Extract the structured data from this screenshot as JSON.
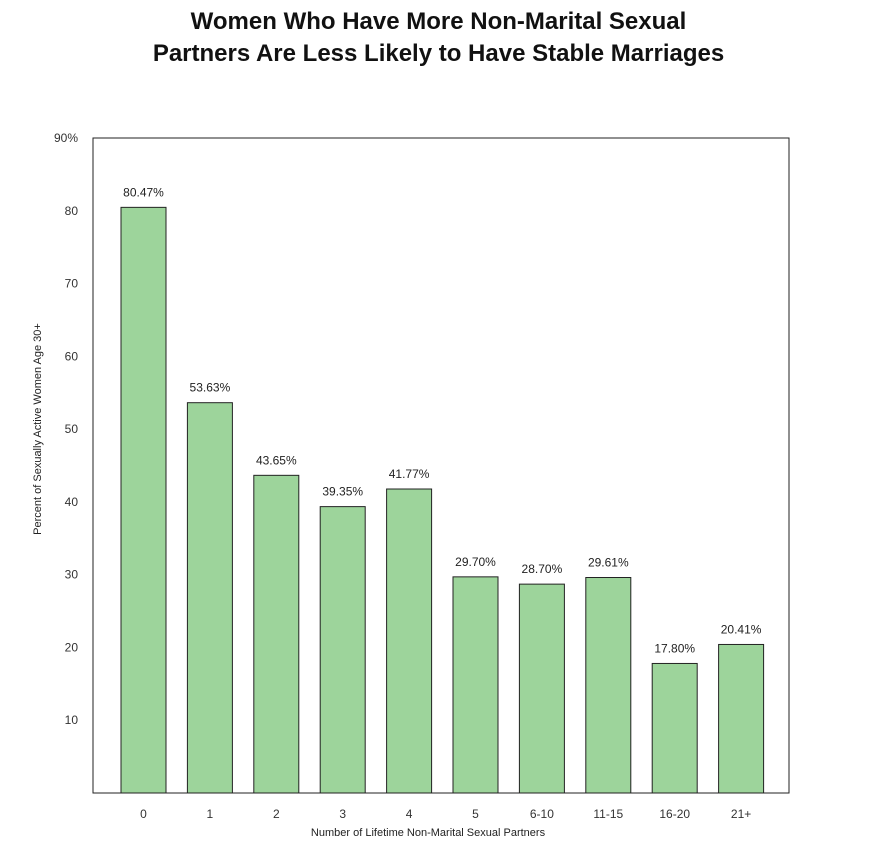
{
  "chart_data": {
    "type": "bar",
    "title_lines": [
      "Women Who Have More Non-Marital Sexual",
      "Partners Are Less Likely to Have Stable Marriages"
    ],
    "xlabel": "Number of Lifetime Non-Marital Sexual Partners",
    "ylabel": "Percent of Sexually Active Women Age 30+",
    "categories": [
      "0",
      "1",
      "2",
      "3",
      "4",
      "5",
      "6-10",
      "11-15",
      "16-20",
      "21+"
    ],
    "values": [
      80.47,
      53.63,
      43.65,
      39.35,
      41.77,
      29.7,
      28.7,
      29.61,
      17.8,
      20.41
    ],
    "value_labels": [
      "80.47%",
      "53.63%",
      "43.65%",
      "39.35%",
      "41.77%",
      "29.70%",
      "28.70%",
      "29.61%",
      "17.80%",
      "20.41%"
    ],
    "yticks": [
      10,
      20,
      30,
      40,
      50,
      60,
      70,
      80,
      90
    ],
    "ytick_labels": [
      "10",
      "20",
      "30",
      "40",
      "50",
      "60",
      "70",
      "80",
      "90%"
    ],
    "ylim": [
      0,
      90
    ],
    "grid": false,
    "bar_color": "#9dd49b",
    "bar_edge_color": "#222222"
  }
}
